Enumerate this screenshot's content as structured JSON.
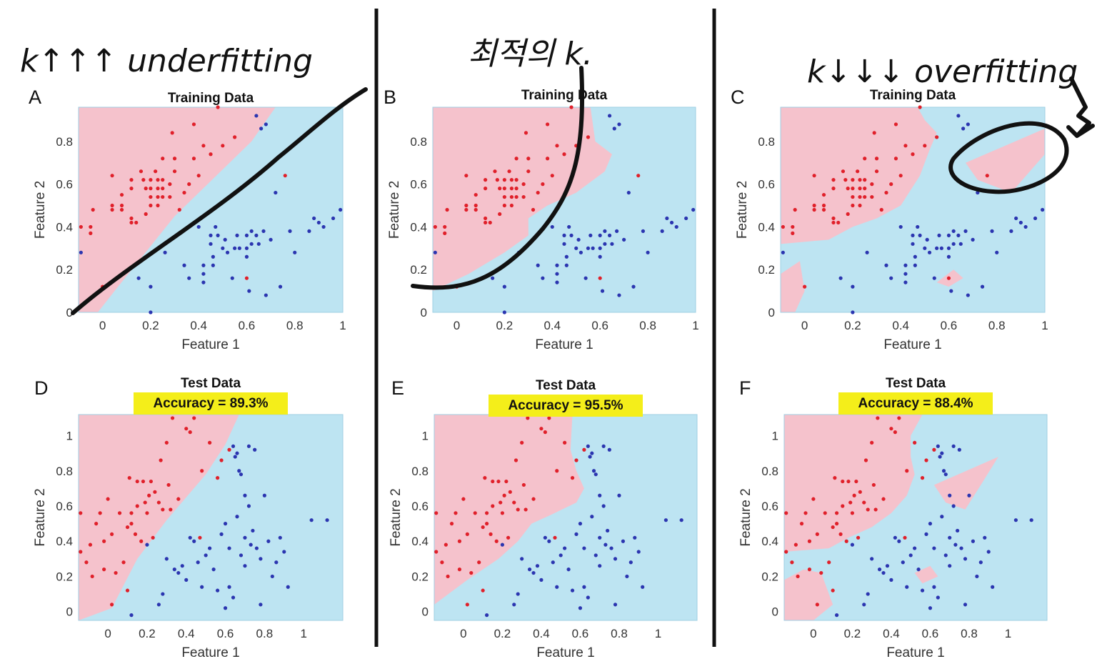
{
  "figure": {
    "colors": {
      "class_red_region": "#f5c2cc",
      "class_blue_region": "#bde4f2",
      "class_red_point": "#e0202a",
      "class_blue_point": "#2b35b0",
      "highlight": "#f4ee1a",
      "ink": "#111111"
    },
    "annotations": [
      {
        "panel": "A",
        "text": "k↑↑↑ underfitting"
      },
      {
        "panel": "B",
        "text": "최적의 k."
      },
      {
        "panel": "C",
        "text": "k↓↓↓ overfitting"
      }
    ]
  },
  "chart_data": [
    {
      "panel": "A",
      "type": "scatter",
      "title": "Training Data",
      "subtitle": "",
      "xlabel": "Feature 1",
      "ylabel": "Feature 2",
      "xlim": [
        -0.1,
        1.0
      ],
      "ylim": [
        0,
        0.96
      ],
      "xticks": [
        0,
        0.2,
        0.4,
        0.6,
        0.8,
        1
      ],
      "yticks": [
        0,
        0.2,
        0.4,
        0.6,
        0.8
      ],
      "boundary": "smooth",
      "legend": "none",
      "grid": false
    },
    {
      "panel": "B",
      "type": "scatter",
      "title": "Training Data",
      "subtitle": "",
      "xlabel": "Feature 1",
      "ylabel": "Feature 2",
      "xlim": [
        -0.1,
        1.0
      ],
      "ylim": [
        0,
        0.96
      ],
      "xticks": [
        0,
        0.2,
        0.4,
        0.6,
        0.8,
        1
      ],
      "yticks": [
        0,
        0.2,
        0.4,
        0.6,
        0.8
      ],
      "boundary": "moderate",
      "legend": "none",
      "grid": false
    },
    {
      "panel": "C",
      "type": "scatter",
      "title": "Training Data",
      "subtitle": "",
      "xlabel": "Feature 1",
      "ylabel": "Feature 2",
      "xlim": [
        -0.1,
        1.0
      ],
      "ylim": [
        0,
        0.96
      ],
      "xticks": [
        0,
        0.2,
        0.4,
        0.6,
        0.8,
        1
      ],
      "yticks": [
        0,
        0.2,
        0.4,
        0.6,
        0.8
      ],
      "boundary": "jagged",
      "legend": "none",
      "grid": false
    },
    {
      "panel": "D",
      "type": "scatter",
      "title": "Test Data",
      "subtitle": "Accuracy = 89.3%",
      "xlabel": "Feature 1",
      "ylabel": "Feature 2",
      "xlim": [
        -0.15,
        1.2
      ],
      "ylim": [
        -0.05,
        1.12
      ],
      "xticks": [
        0,
        0.2,
        0.4,
        0.6,
        0.8,
        1
      ],
      "yticks": [
        0,
        0.2,
        0.4,
        0.6,
        0.8,
        1
      ],
      "boundary": "smooth",
      "legend": "none",
      "grid": false,
      "accuracy": 89.3
    },
    {
      "panel": "E",
      "type": "scatter",
      "title": "Test Data",
      "subtitle": "Accuracy = 95.5%",
      "xlabel": "Feature 1",
      "ylabel": "Feature 2",
      "xlim": [
        -0.15,
        1.2
      ],
      "ylim": [
        -0.05,
        1.12
      ],
      "xticks": [
        0,
        0.2,
        0.4,
        0.6,
        0.8,
        1
      ],
      "yticks": [
        0,
        0.2,
        0.4,
        0.6,
        0.8,
        1
      ],
      "boundary": "moderate",
      "legend": "none",
      "grid": false,
      "accuracy": 95.5
    },
    {
      "panel": "F",
      "type": "scatter",
      "title": "Test Data",
      "subtitle": "Accuracy = 88.4%",
      "xlabel": "Feature 1",
      "ylabel": "Feature 2",
      "xlim": [
        -0.15,
        1.2
      ],
      "ylim": [
        -0.05,
        1.12
      ],
      "xticks": [
        0,
        0.2,
        0.4,
        0.6,
        0.8,
        1
      ],
      "yticks": [
        0,
        0.2,
        0.4,
        0.6,
        0.8,
        1
      ],
      "boundary": "jagged",
      "legend": "none",
      "grid": false,
      "accuracy": 88.4
    }
  ],
  "point_sets": {
    "train_red": [
      [
        -0.09,
        0.4
      ],
      [
        -0.05,
        0.4
      ],
      [
        -0.05,
        0.37
      ],
      [
        -0.04,
        0.48
      ],
      [
        0.0,
        0.12
      ],
      [
        0.04,
        0.64
      ],
      [
        0.04,
        0.5
      ],
      [
        0.04,
        0.48
      ],
      [
        0.08,
        0.55
      ],
      [
        0.08,
        0.5
      ],
      [
        0.08,
        0.48
      ],
      [
        0.12,
        0.62
      ],
      [
        0.12,
        0.58
      ],
      [
        0.12,
        0.44
      ],
      [
        0.12,
        0.42
      ],
      [
        0.14,
        0.42
      ],
      [
        0.16,
        0.66
      ],
      [
        0.17,
        0.62
      ],
      [
        0.18,
        0.58
      ],
      [
        0.18,
        0.46
      ],
      [
        0.2,
        0.62
      ],
      [
        0.2,
        0.58
      ],
      [
        0.2,
        0.54
      ],
      [
        0.2,
        0.5
      ],
      [
        0.22,
        0.66
      ],
      [
        0.23,
        0.62
      ],
      [
        0.23,
        0.58
      ],
      [
        0.23,
        0.54
      ],
      [
        0.23,
        0.5
      ],
      [
        0.25,
        0.72
      ],
      [
        0.25,
        0.62
      ],
      [
        0.25,
        0.58
      ],
      [
        0.25,
        0.54
      ],
      [
        0.28,
        0.6
      ],
      [
        0.28,
        0.54
      ],
      [
        0.29,
        0.84
      ],
      [
        0.3,
        0.72
      ],
      [
        0.3,
        0.66
      ],
      [
        0.32,
        0.48
      ],
      [
        0.34,
        0.56
      ],
      [
        0.36,
        0.6
      ],
      [
        0.38,
        0.88
      ],
      [
        0.38,
        0.72
      ],
      [
        0.4,
        0.64
      ],
      [
        0.42,
        0.78
      ],
      [
        0.45,
        0.74
      ],
      [
        0.48,
        0.96
      ],
      [
        0.5,
        0.78
      ],
      [
        0.55,
        0.82
      ],
      [
        0.6,
        0.16
      ],
      [
        0.76,
        0.64
      ]
    ],
    "train_blue": [
      [
        -0.09,
        0.28
      ],
      [
        0.2,
        0.0
      ],
      [
        0.15,
        0.16
      ],
      [
        0.2,
        0.12
      ],
      [
        0.26,
        0.28
      ],
      [
        0.34,
        0.22
      ],
      [
        0.36,
        0.16
      ],
      [
        0.4,
        0.4
      ],
      [
        0.42,
        0.22
      ],
      [
        0.42,
        0.18
      ],
      [
        0.42,
        0.14
      ],
      [
        0.45,
        0.36
      ],
      [
        0.45,
        0.32
      ],
      [
        0.46,
        0.26
      ],
      [
        0.46,
        0.22
      ],
      [
        0.47,
        0.4
      ],
      [
        0.48,
        0.36
      ],
      [
        0.5,
        0.3
      ],
      [
        0.51,
        0.34
      ],
      [
        0.52,
        0.28
      ],
      [
        0.54,
        0.16
      ],
      [
        0.55,
        0.3
      ],
      [
        0.56,
        0.36
      ],
      [
        0.57,
        0.3
      ],
      [
        0.6,
        0.36
      ],
      [
        0.6,
        0.3
      ],
      [
        0.6,
        0.26
      ],
      [
        0.61,
        0.1
      ],
      [
        0.62,
        0.32
      ],
      [
        0.62,
        0.38
      ],
      [
        0.64,
        0.92
      ],
      [
        0.64,
        0.36
      ],
      [
        0.65,
        0.32
      ],
      [
        0.66,
        0.86
      ],
      [
        0.67,
        0.38
      ],
      [
        0.68,
        0.88
      ],
      [
        0.68,
        0.08
      ],
      [
        0.7,
        0.34
      ],
      [
        0.72,
        0.56
      ],
      [
        0.74,
        0.12
      ],
      [
        0.78,
        0.38
      ],
      [
        0.8,
        0.28
      ],
      [
        0.86,
        0.38
      ],
      [
        0.88,
        0.44
      ],
      [
        0.9,
        0.42
      ],
      [
        0.92,
        0.4
      ],
      [
        0.96,
        0.44
      ],
      [
        0.99,
        0.48
      ]
    ],
    "test_red": [
      [
        -0.14,
        0.56
      ],
      [
        -0.14,
        0.34
      ],
      [
        -0.11,
        0.28
      ],
      [
        -0.09,
        0.38
      ],
      [
        -0.08,
        0.2
      ],
      [
        -0.06,
        0.5
      ],
      [
        -0.04,
        0.56
      ],
      [
        -0.02,
        0.24
      ],
      [
        -0.02,
        0.4
      ],
      [
        0.0,
        0.64
      ],
      [
        0.02,
        0.44
      ],
      [
        0.04,
        0.22
      ],
      [
        0.06,
        0.56
      ],
      [
        0.08,
        0.28
      ],
      [
        0.1,
        0.48
      ],
      [
        0.11,
        0.76
      ],
      [
        0.12,
        0.56
      ],
      [
        0.12,
        0.5
      ],
      [
        0.14,
        0.44
      ],
      [
        0.15,
        0.74
      ],
      [
        0.15,
        0.6
      ],
      [
        0.17,
        0.4
      ],
      [
        0.18,
        0.74
      ],
      [
        0.19,
        0.62
      ],
      [
        0.2,
        0.56
      ],
      [
        0.21,
        0.66
      ],
      [
        0.22,
        0.74
      ],
      [
        0.23,
        0.42
      ],
      [
        0.24,
        0.68
      ],
      [
        0.26,
        0.62
      ],
      [
        0.27,
        0.86
      ],
      [
        0.28,
        0.58
      ],
      [
        0.3,
        0.96
      ],
      [
        0.31,
        0.72
      ],
      [
        0.32,
        0.58
      ],
      [
        0.33,
        1.1
      ],
      [
        0.36,
        0.64
      ],
      [
        0.4,
        1.04
      ],
      [
        0.42,
        1.02
      ],
      [
        0.44,
        1.1
      ],
      [
        0.47,
        0.42
      ],
      [
        0.48,
        0.8
      ],
      [
        0.52,
        0.96
      ],
      [
        0.56,
        0.76
      ],
      [
        0.58,
        0.86
      ],
      [
        0.62,
        0.92
      ],
      [
        0.02,
        0.04
      ],
      [
        0.1,
        0.12
      ]
    ],
    "test_blue": [
      [
        0.12,
        -0.02
      ],
      [
        0.2,
        0.38
      ],
      [
        0.26,
        0.04
      ],
      [
        0.28,
        0.1
      ],
      [
        0.3,
        0.3
      ],
      [
        0.34,
        0.24
      ],
      [
        0.36,
        0.22
      ],
      [
        0.38,
        0.26
      ],
      [
        0.4,
        0.18
      ],
      [
        0.42,
        0.42
      ],
      [
        0.44,
        0.4
      ],
      [
        0.46,
        0.28
      ],
      [
        0.48,
        0.14
      ],
      [
        0.5,
        0.32
      ],
      [
        0.52,
        0.36
      ],
      [
        0.54,
        0.24
      ],
      [
        0.56,
        0.12
      ],
      [
        0.58,
        0.44
      ],
      [
        0.6,
        0.5
      ],
      [
        0.62,
        0.36
      ],
      [
        0.62,
        0.14
      ],
      [
        0.64,
        0.08
      ],
      [
        0.64,
        0.94
      ],
      [
        0.65,
        0.88
      ],
      [
        0.66,
        0.9
      ],
      [
        0.66,
        0.54
      ],
      [
        0.67,
        0.8
      ],
      [
        0.68,
        0.78
      ],
      [
        0.68,
        0.32
      ],
      [
        0.7,
        0.42
      ],
      [
        0.7,
        0.26
      ],
      [
        0.72,
        0.94
      ],
      [
        0.72,
        0.6
      ],
      [
        0.73,
        0.38
      ],
      [
        0.74,
        0.46
      ],
      [
        0.75,
        0.92
      ],
      [
        0.76,
        0.36
      ],
      [
        0.78,
        0.3
      ],
      [
        0.78,
        0.04
      ],
      [
        0.8,
        0.66
      ],
      [
        0.82,
        0.4
      ],
      [
        0.84,
        0.2
      ],
      [
        0.86,
        0.28
      ],
      [
        0.88,
        0.42
      ],
      [
        0.9,
        0.34
      ],
      [
        0.92,
        0.14
      ],
      [
        1.04,
        0.52
      ],
      [
        1.12,
        0.52
      ],
      [
        0.6,
        0.02
      ],
      [
        0.7,
        0.66
      ]
    ]
  }
}
